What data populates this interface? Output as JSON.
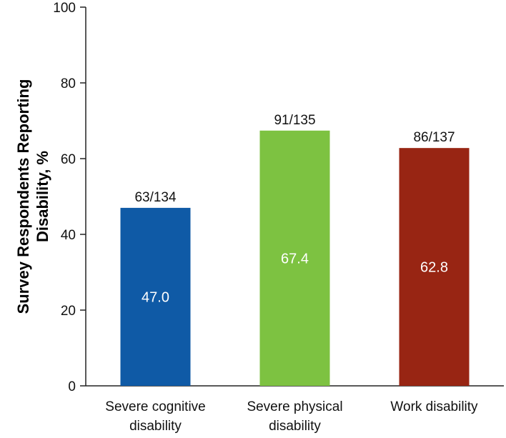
{
  "chart_data": {
    "type": "bar",
    "title": "",
    "xlabel": "",
    "ylabel_lines": [
      "Survey Respondents Reporting",
      "Disability, %"
    ],
    "ylim": [
      0,
      100
    ],
    "yticks": [
      0,
      20,
      40,
      60,
      80,
      100
    ],
    "grid": false,
    "categories": [
      [
        "Severe cognitive",
        "disability"
      ],
      [
        "Severe physical",
        "disability"
      ],
      [
        "Work disability"
      ]
    ],
    "values": [
      47.0,
      67.4,
      62.8
    ],
    "value_labels": [
      "47.0",
      "67.4",
      "62.8"
    ],
    "count_labels": [
      "63/134",
      "91/135",
      "86/137"
    ],
    "colors": [
      "#0F5AA6",
      "#7DC241",
      "#982513"
    ]
  }
}
